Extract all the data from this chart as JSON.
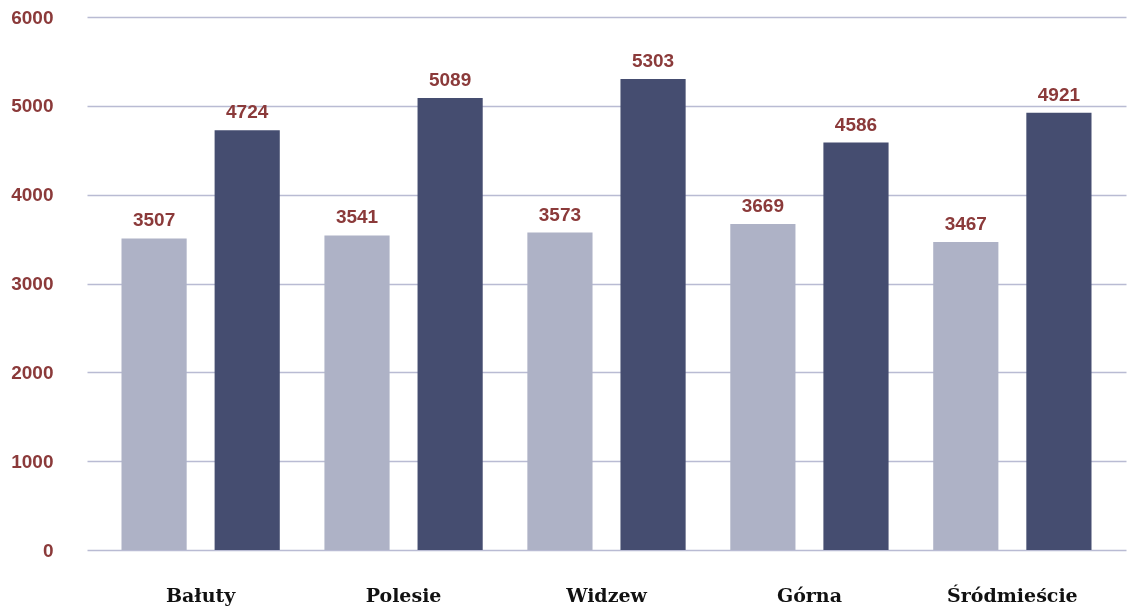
{
  "chart_data": {
    "type": "bar",
    "categories": [
      "Bałuty",
      "Polesie",
      "Widzew",
      "Górna",
      "Śródmieście"
    ],
    "series": [
      {
        "color": "#aeb2c6",
        "values": [
          3507,
          3541,
          3573,
          3669,
          3467
        ]
      },
      {
        "color": "#454d70",
        "values": [
          4724,
          5089,
          5303,
          4586,
          4921
        ]
      }
    ],
    "ylim": [
      0,
      6000
    ],
    "yticks": [
      0,
      1000,
      2000,
      3000,
      4000,
      5000,
      6000
    ],
    "grid": "y",
    "data_labels": true,
    "legend": false
  }
}
